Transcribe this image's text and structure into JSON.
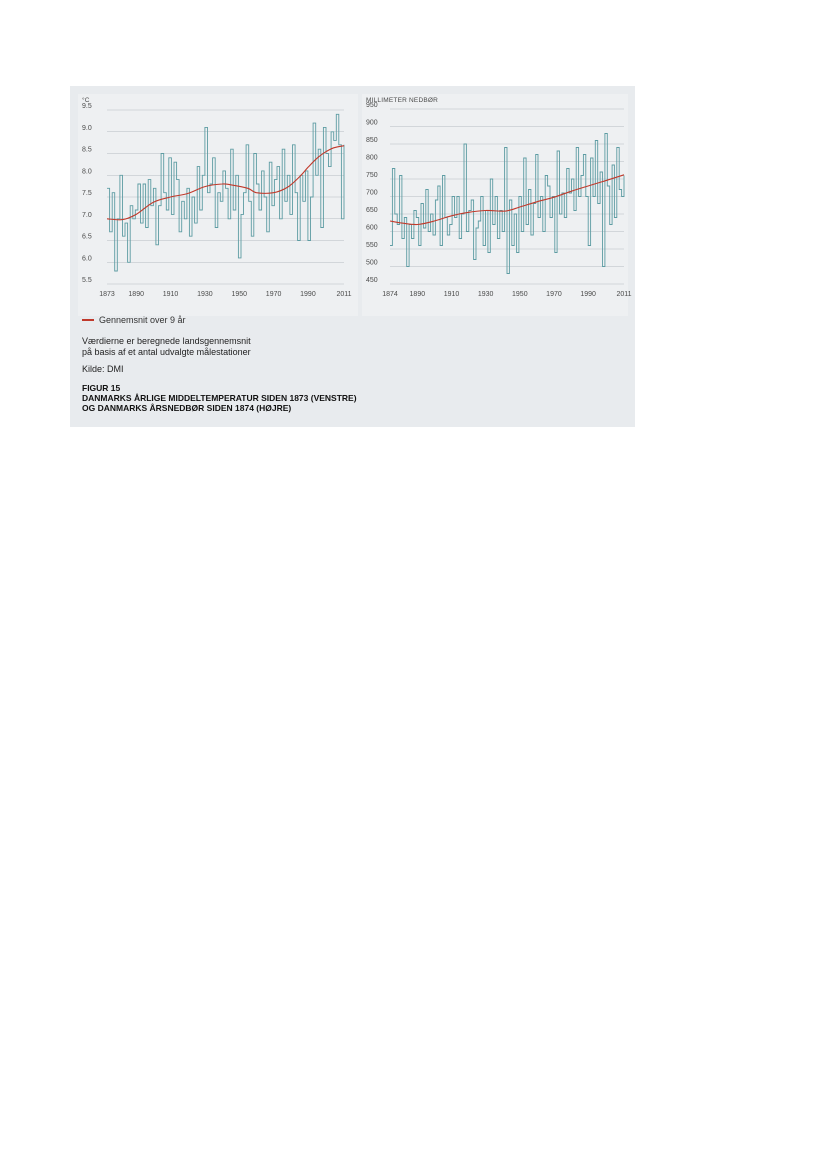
{
  "legend": {
    "label": "Gennemsnit over 9 år",
    "color": "#c0392b"
  },
  "note": "Værdierne er beregnede landsgennemsnit\npå basis af et antal udvalgte målestationer",
  "source": "Kilde: DMI",
  "figure": {
    "label": "FIGUR 15",
    "title": "DANMARKS ÅRLIGE MIDDELTEMPERATUR SIDEN 1873 (VENSTRE)\nOG DANMARKS ÅRSNEDBØR SIDEN 1874 (HØJRE)"
  },
  "colors": {
    "series": "#5d9ca3",
    "trend": "#c0392b",
    "grid": "#b5bcc1",
    "background": "#e8ebee"
  },
  "chart_data": [
    {
      "type": "line",
      "unit_label": "°C",
      "x_start": 1873,
      "x_end": 2011,
      "xlim": [
        1873,
        2011
      ],
      "ylim": [
        5.5,
        9.5
      ],
      "xticks": [
        "1873",
        "1890",
        "1910",
        "1930",
        "1950",
        "1970",
        "1990",
        "2011"
      ],
      "xtick_values": [
        1873,
        1890,
        1910,
        1930,
        1950,
        1970,
        1990,
        2011
      ],
      "yticks": [
        "9.5",
        "9.0",
        "8.5",
        "8.0",
        "7.5",
        "7.0",
        "6.5",
        "6.0",
        "5.5"
      ],
      "ytick_values": [
        9.5,
        9.0,
        8.5,
        8.0,
        7.5,
        7.0,
        6.5,
        6.0,
        5.5
      ],
      "grid": true,
      "series": [
        {
          "values": [
            7.7,
            6.7,
            7.6,
            5.8,
            7.0,
            8.0,
            6.6,
            6.9,
            6.0,
            7.3,
            7.0,
            7.2,
            7.8,
            6.9,
            7.8,
            6.8,
            7.9,
            7.3,
            7.7,
            6.4,
            7.3,
            8.5,
            7.6,
            7.2,
            8.4,
            7.1,
            8.3,
            7.9,
            6.7,
            7.4,
            7.0,
            7.7,
            6.6,
            7.5,
            6.9,
            8.2,
            7.2,
            8.0,
            9.1,
            7.6,
            7.8,
            8.4,
            6.8,
            7.6,
            7.4,
            8.1,
            7.7,
            7.0,
            8.6,
            7.2,
            8.0,
            6.1,
            7.1,
            7.6,
            8.7,
            7.4,
            6.6,
            8.5,
            7.8,
            7.2,
            8.1,
            7.5,
            6.7,
            8.3,
            7.3,
            7.9,
            8.2,
            7.0,
            8.6,
            7.4,
            8.0,
            7.1,
            8.7,
            7.6,
            6.5,
            8.0,
            7.4,
            8.1,
            6.5,
            7.5,
            9.2,
            8.0,
            8.6,
            6.8,
            9.1,
            8.5,
            8.2,
            9.0,
            8.8,
            9.4,
            8.7,
            7.0,
            8.7
          ],
          "color": "#5d9ca3"
        },
        {
          "role": "trend",
          "x": [
            1873,
            1882,
            1890,
            1900,
            1910,
            1920,
            1930,
            1940,
            1945,
            1955,
            1960,
            1970,
            1978,
            1985,
            1990,
            1995,
            2000,
            2005,
            2011
          ],
          "values": [
            7.0,
            6.98,
            7.1,
            7.38,
            7.5,
            7.58,
            7.74,
            7.8,
            7.78,
            7.7,
            7.6,
            7.6,
            7.72,
            7.96,
            8.18,
            8.38,
            8.53,
            8.63,
            8.68
          ],
          "color": "#c0392b"
        }
      ]
    },
    {
      "type": "line",
      "unit_label": "MILLIMETER NEDBØR",
      "x_start": 1874,
      "x_end": 2011,
      "xlim": [
        1874,
        2011
      ],
      "ylim": [
        450,
        950
      ],
      "xticks": [
        "1874",
        "1890",
        "1910",
        "1930",
        "1950",
        "1970",
        "1990",
        "2011"
      ],
      "xtick_values": [
        1874,
        1890,
        1910,
        1930,
        1950,
        1970,
        1990,
        2011
      ],
      "yticks": [
        "950",
        "900",
        "850",
        "800",
        "750",
        "700",
        "650",
        "600",
        "550",
        "500",
        "450"
      ],
      "ytick_values": [
        950,
        900,
        850,
        800,
        750,
        700,
        650,
        600,
        550,
        500,
        450
      ],
      "grid": true,
      "series": [
        {
          "values": [
            560,
            780,
            650,
            620,
            760,
            580,
            640,
            500,
            620,
            580,
            660,
            640,
            560,
            680,
            610,
            720,
            600,
            650,
            590,
            690,
            730,
            560,
            760,
            640,
            590,
            620,
            700,
            640,
            700,
            580,
            650,
            850,
            600,
            660,
            690,
            520,
            610,
            630,
            700,
            560,
            660,
            540,
            750,
            620,
            700,
            580,
            660,
            600,
            840,
            480,
            690,
            560,
            650,
            540,
            700,
            600,
            810,
            620,
            720,
            590,
            680,
            820,
            640,
            700,
            600,
            760,
            730,
            640,
            700,
            540,
            830,
            650,
            710,
            640,
            780,
            710,
            750,
            660,
            840,
            700,
            760,
            820,
            700,
            560,
            810,
            700,
            860,
            680,
            770,
            500,
            880,
            730,
            620,
            790,
            640,
            840,
            720,
            700,
            760
          ],
          "color": "#5d9ca3"
        },
        {
          "role": "trend",
          "x": [
            1874,
            1880,
            1890,
            1900,
            1910,
            1920,
            1930,
            1940,
            1945,
            1950,
            1960,
            1970,
            1980,
            1990,
            2000,
            2011
          ],
          "values": [
            630,
            625,
            620,
            630,
            645,
            655,
            660,
            658,
            662,
            670,
            685,
            698,
            715,
            730,
            745,
            762
          ],
          "color": "#c0392b"
        }
      ]
    }
  ]
}
